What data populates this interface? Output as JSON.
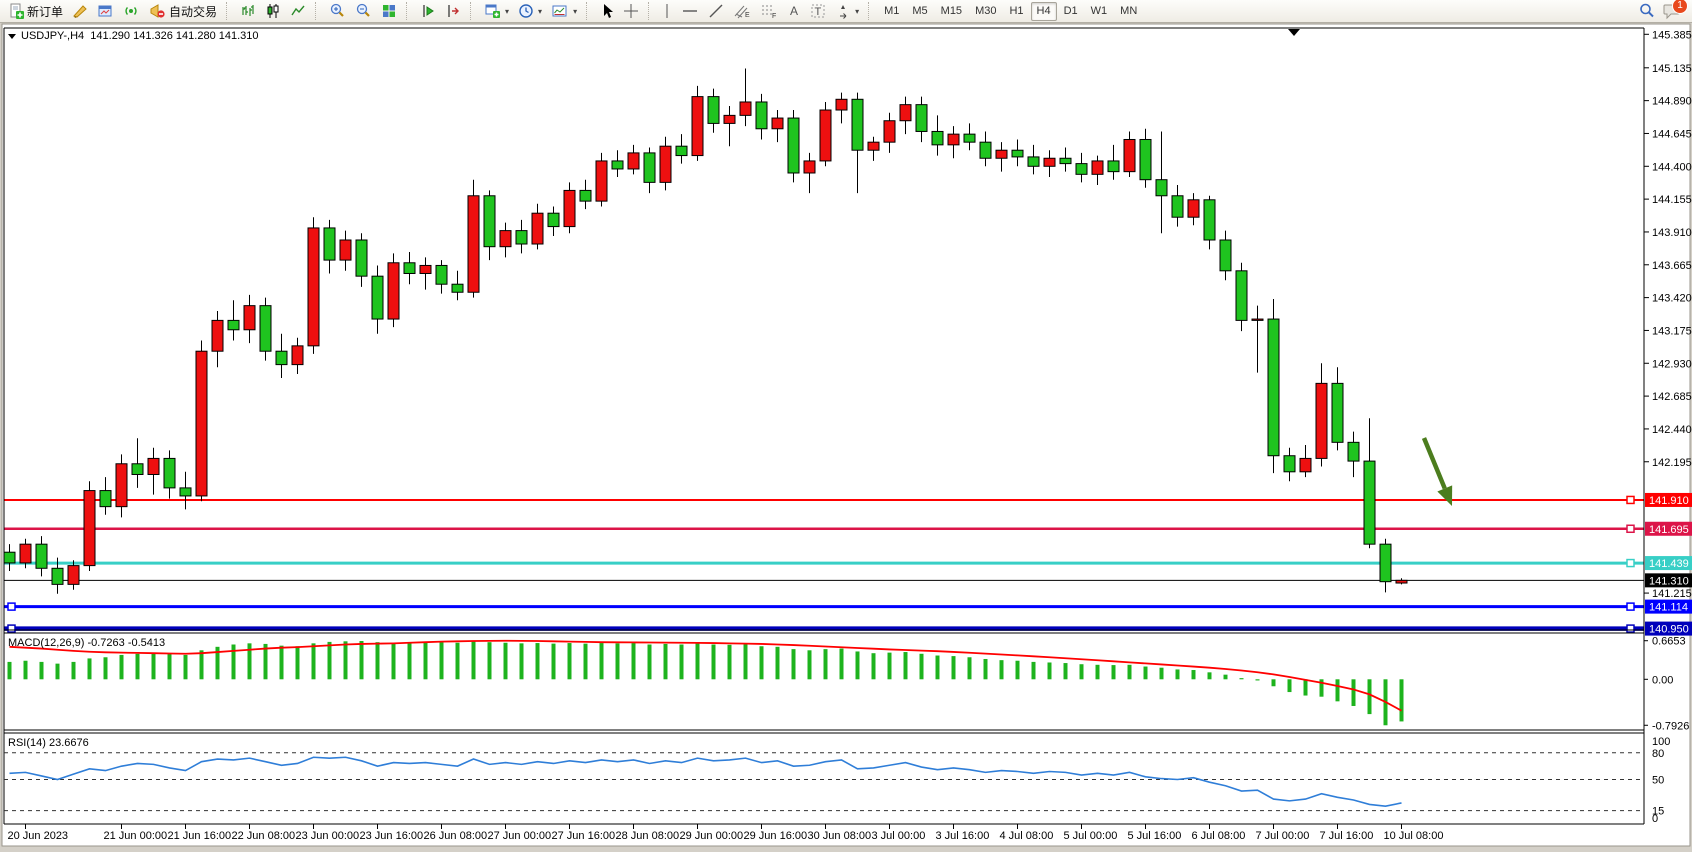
{
  "toolbar": {
    "new_order_label": "新订单",
    "auto_trading_label": "自动交易",
    "timeframes": [
      "M1",
      "M5",
      "M15",
      "M30",
      "H1",
      "H4",
      "D1",
      "W1",
      "MN"
    ],
    "active_timeframe": "H4",
    "notification_badge": "1",
    "icons": {
      "symbol_dropdown": "▼",
      "caret": "▾",
      "crosshair": "+",
      "vertical_line": "|",
      "horizontal_line": "—",
      "trend_line": "/",
      "text_tool": "A",
      "label_tool": "T",
      "channel_tool": "E",
      "fibonacci_tool": "F"
    }
  },
  "chart": {
    "title": "USDJPY-,H4  141.290 141.326 141.280 141.310",
    "symbol": "USDJPY-",
    "period": "H4",
    "quote": {
      "open": "141.290",
      "high": "141.326",
      "low": "141.280",
      "close": "141.310"
    },
    "macd_label": "MACD(12,26,9) -0.7263 -0.5413",
    "rsi_label": "RSI(14) 23.6676"
  },
  "chart_data": {
    "type": "candlestick",
    "symbol": "USDJPY-",
    "timeframe": "H4",
    "colors": {
      "bull": "#ee1010",
      "bear": "#1fc41f",
      "outline": "#000000",
      "macd_hist": "#1db31d",
      "macd_signal": "#ff0000",
      "rsi_line": "#2f7ed8",
      "arrow": "#4c7d1e"
    },
    "y_axis": {
      "tick_labels": [
        "145.385",
        "145.135",
        "144.890",
        "144.645",
        "144.400",
        "144.155",
        "143.910",
        "143.665",
        "143.420",
        "143.175",
        "142.930",
        "142.685",
        "142.440",
        "142.195",
        "141.215"
      ]
    },
    "x_labels": [
      "20 Jun 2023",
      "21 Jun 00:00",
      "21 Jun 16:00",
      "22 Jun 08:00",
      "23 Jun 00:00",
      "23 Jun 16:00",
      "26 Jun 08:00",
      "27 Jun 00:00",
      "27 Jun 16:00",
      "28 Jun 08:00",
      "29 Jun 00:00",
      "29 Jun 16:00",
      "30 Jun 08:00",
      "3 Jul 00:00",
      "3 Jul 16:00",
      "4 Jul 08:00",
      "5 Jul 00:00",
      "5 Jul 16:00",
      "6 Jul 08:00",
      "7 Jul 00:00",
      "7 Jul 16:00",
      "10 Jul 08:00"
    ],
    "bid_line": {
      "price": 141.31,
      "label": "141.310",
      "color": "#000000"
    },
    "hlines": [
      {
        "price": 141.91,
        "label": "141.910",
        "color": "#ff0000",
        "width": 2,
        "handles": "right"
      },
      {
        "price": 141.695,
        "label": "141.695",
        "color": "#dc1448",
        "width": 2.5,
        "handles": "right"
      },
      {
        "price": 141.439,
        "label": "141.439",
        "color": "#38cfc6",
        "width": 3,
        "handles": "right"
      },
      {
        "price": 141.114,
        "label": "141.114",
        "color": "#0000ff",
        "width": 3,
        "handles": "both"
      },
      {
        "price": 140.95,
        "label": "140.950",
        "color": "#0000bb",
        "width": 4.5,
        "handles": "both"
      }
    ],
    "annotations": [
      {
        "type": "arrow",
        "from_xy": [
          1424,
          438
        ],
        "to_xy": [
          1452,
          506
        ],
        "color": "#4c7d1e"
      }
    ],
    "candles": [
      [
        "19 Jun 20:00",
        141.52,
        141.58,
        141.38,
        141.44
      ],
      [
        "20 Jun 00:00",
        141.44,
        141.62,
        141.4,
        141.58
      ],
      [
        "20 Jun 04:00",
        141.58,
        141.64,
        141.34,
        141.4
      ],
      [
        "20 Jun 08:00",
        141.4,
        141.48,
        141.21,
        141.28
      ],
      [
        "20 Jun 12:00",
        141.28,
        141.46,
        141.24,
        141.42
      ],
      [
        "20 Jun 16:00",
        141.42,
        142.05,
        141.38,
        141.98
      ],
      [
        "20 Jun 20:00",
        141.98,
        142.08,
        141.8,
        141.86
      ],
      [
        "21 Jun 00:00",
        141.86,
        142.25,
        141.78,
        142.18
      ],
      [
        "21 Jun 04:00",
        142.18,
        142.37,
        142.0,
        142.1
      ],
      [
        "21 Jun 08:00",
        142.1,
        142.3,
        141.95,
        142.22
      ],
      [
        "21 Jun 12:00",
        142.22,
        142.28,
        141.92,
        142.0
      ],
      [
        "21 Jun 16:00",
        142.0,
        142.12,
        141.84,
        141.94
      ],
      [
        "21 Jun 20:00",
        141.94,
        143.1,
        141.9,
        143.02
      ],
      [
        "22 Jun 00:00",
        143.02,
        143.32,
        142.9,
        143.25
      ],
      [
        "22 Jun 04:00",
        143.25,
        143.4,
        143.1,
        143.18
      ],
      [
        "22 Jun 08:00",
        143.18,
        143.44,
        143.08,
        143.36
      ],
      [
        "22 Jun 12:00",
        143.36,
        143.42,
        142.95,
        143.02
      ],
      [
        "22 Jun 16:00",
        143.02,
        143.15,
        142.82,
        142.92
      ],
      [
        "22 Jun 20:00",
        142.92,
        143.12,
        142.85,
        143.06
      ],
      [
        "23 Jun 00:00",
        143.06,
        144.02,
        143.0,
        143.94
      ],
      [
        "23 Jun 04:00",
        143.94,
        144.0,
        143.6,
        143.7
      ],
      [
        "23 Jun 08:00",
        143.7,
        143.92,
        143.62,
        143.85
      ],
      [
        "23 Jun 12:00",
        143.85,
        143.9,
        143.5,
        143.58
      ],
      [
        "23 Jun 16:00",
        143.58,
        143.66,
        143.15,
        143.26
      ],
      [
        "23 Jun 20:00",
        143.26,
        143.75,
        143.2,
        143.68
      ],
      [
        "26 Jun 00:00",
        143.68,
        143.76,
        143.52,
        143.6
      ],
      [
        "26 Jun 04:00",
        143.6,
        143.72,
        143.48,
        143.66
      ],
      [
        "26 Jun 08:00",
        143.66,
        143.7,
        143.45,
        143.52
      ],
      [
        "26 Jun 12:00",
        143.52,
        143.62,
        143.4,
        143.46
      ],
      [
        "26 Jun 16:00",
        143.46,
        144.3,
        143.42,
        144.18
      ],
      [
        "26 Jun 20:00",
        144.18,
        144.22,
        143.7,
        143.8
      ],
      [
        "27 Jun 00:00",
        143.8,
        143.98,
        143.72,
        143.92
      ],
      [
        "27 Jun 04:00",
        143.92,
        144.0,
        143.75,
        143.82
      ],
      [
        "27 Jun 08:00",
        143.82,
        144.12,
        143.78,
        144.05
      ],
      [
        "27 Jun 12:00",
        144.05,
        144.1,
        143.88,
        143.95
      ],
      [
        "27 Jun 16:00",
        143.95,
        144.28,
        143.9,
        144.22
      ],
      [
        "27 Jun 20:00",
        144.22,
        144.3,
        144.08,
        144.14
      ],
      [
        "28 Jun 00:00",
        144.14,
        144.5,
        144.1,
        144.44
      ],
      [
        "28 Jun 04:00",
        144.44,
        144.52,
        144.32,
        144.38
      ],
      [
        "28 Jun 08:00",
        144.38,
        144.56,
        144.34,
        144.5
      ],
      [
        "28 Jun 12:00",
        144.5,
        144.54,
        144.2,
        144.28
      ],
      [
        "28 Jun 16:00",
        144.28,
        144.62,
        144.22,
        144.55
      ],
      [
        "28 Jun 20:00",
        144.55,
        144.64,
        144.42,
        144.48
      ],
      [
        "29 Jun 00:00",
        144.48,
        145.0,
        144.44,
        144.92
      ],
      [
        "29 Jun 04:00",
        144.92,
        144.98,
        144.65,
        144.72
      ],
      [
        "29 Jun 08:00",
        144.72,
        144.85,
        144.55,
        144.78
      ],
      [
        "29 Jun 12:00",
        144.78,
        145.13,
        144.7,
        144.88
      ],
      [
        "29 Jun 16:00",
        144.88,
        144.94,
        144.6,
        144.68
      ],
      [
        "29 Jun 20:00",
        144.68,
        144.82,
        144.58,
        144.76
      ],
      [
        "30 Jun 00:00",
        144.76,
        144.82,
        144.28,
        144.35
      ],
      [
        "30 Jun 04:00",
        144.35,
        144.5,
        144.2,
        144.44
      ],
      [
        "30 Jun 08:00",
        144.44,
        144.88,
        144.4,
        144.82
      ],
      [
        "30 Jun 12:00",
        144.82,
        144.95,
        144.72,
        144.9
      ],
      [
        "30 Jun 16:00",
        144.9,
        144.95,
        144.2,
        144.52
      ],
      [
        "30 Jun 20:00",
        144.52,
        144.62,
        144.44,
        144.58
      ],
      [
        "3 Jul 00:00",
        144.58,
        144.8,
        144.5,
        144.74
      ],
      [
        "3 Jul 04:00",
        144.74,
        144.92,
        144.64,
        144.86
      ],
      [
        "3 Jul 08:00",
        144.86,
        144.92,
        144.58,
        144.66
      ],
      [
        "3 Jul 12:00",
        144.66,
        144.78,
        144.48,
        144.56
      ],
      [
        "3 Jul 16:00",
        144.56,
        144.7,
        144.46,
        144.64
      ],
      [
        "3 Jul 20:00",
        144.64,
        144.72,
        144.52,
        144.58
      ],
      [
        "4 Jul 00:00",
        144.58,
        144.66,
        144.4,
        144.46
      ],
      [
        "4 Jul 04:00",
        144.46,
        144.58,
        144.36,
        144.52
      ],
      [
        "4 Jul 08:00",
        144.52,
        144.6,
        144.4,
        144.47
      ],
      [
        "4 Jul 12:00",
        144.47,
        144.56,
        144.34,
        144.4
      ],
      [
        "4 Jul 16:00",
        144.4,
        144.52,
        144.32,
        144.46
      ],
      [
        "4 Jul 20:00",
        144.46,
        144.54,
        144.36,
        144.42
      ],
      [
        "5 Jul 00:00",
        144.42,
        144.5,
        144.28,
        144.34
      ],
      [
        "5 Jul 04:00",
        144.34,
        144.48,
        144.26,
        144.44
      ],
      [
        "5 Jul 08:00",
        144.44,
        144.56,
        144.3,
        144.36
      ],
      [
        "5 Jul 12:00",
        144.36,
        144.66,
        144.32,
        144.6
      ],
      [
        "5 Jul 16:00",
        144.6,
        144.68,
        144.24,
        144.3
      ],
      [
        "5 Jul 20:00",
        144.3,
        144.66,
        143.9,
        144.18
      ],
      [
        "6 Jul 00:00",
        144.18,
        144.26,
        143.95,
        144.02
      ],
      [
        "6 Jul 04:00",
        144.02,
        144.2,
        143.96,
        144.15
      ],
      [
        "6 Jul 08:00",
        144.15,
        144.18,
        143.78,
        143.85
      ],
      [
        "6 Jul 12:00",
        143.85,
        143.92,
        143.55,
        143.62
      ],
      [
        "6 Jul 16:00",
        143.62,
        143.68,
        143.17,
        143.25
      ],
      [
        "6 Jul 20:00",
        143.25,
        143.36,
        142.86,
        143.26
      ],
      [
        "7 Jul 00:00",
        143.26,
        143.41,
        142.11,
        142.24
      ],
      [
        "7 Jul 04:00",
        142.24,
        142.3,
        142.05,
        142.12
      ],
      [
        "7 Jul 08:00",
        142.12,
        142.32,
        142.08,
        142.22
      ],
      [
        "7 Jul 12:00",
        142.22,
        142.93,
        142.16,
        142.78
      ],
      [
        "7 Jul 16:00",
        142.78,
        142.9,
        142.28,
        142.34
      ],
      [
        "7 Jul 20:00",
        142.34,
        142.42,
        142.08,
        142.2
      ],
      [
        "10 Jul 00:00",
        142.2,
        142.52,
        141.55,
        141.58
      ],
      [
        "10 Jul 04:00",
        141.58,
        141.62,
        141.22,
        141.3
      ],
      [
        "10 Jul 08:00",
        141.29,
        141.326,
        141.28,
        141.31
      ]
    ],
    "macd": {
      "label": "MACD(12,26,9) -0.7263 -0.5413",
      "params": "12,26,9",
      "macd_value": -0.7263,
      "signal_value": -0.5413,
      "axis_labels": [
        "0.6653",
        "0.00",
        "-0.7926"
      ],
      "histogram": [
        0.3,
        0.32,
        0.3,
        0.27,
        0.3,
        0.36,
        0.38,
        0.42,
        0.44,
        0.45,
        0.44,
        0.42,
        0.5,
        0.56,
        0.6,
        0.62,
        0.61,
        0.58,
        0.57,
        0.62,
        0.645,
        0.655,
        0.66,
        0.64,
        0.62,
        0.625,
        0.63,
        0.635,
        0.63,
        0.655,
        0.64,
        0.63,
        0.62,
        0.625,
        0.615,
        0.625,
        0.615,
        0.625,
        0.62,
        0.625,
        0.6,
        0.61,
        0.6,
        0.625,
        0.6,
        0.595,
        0.6,
        0.57,
        0.56,
        0.52,
        0.5,
        0.52,
        0.53,
        0.48,
        0.45,
        0.46,
        0.47,
        0.44,
        0.41,
        0.4,
        0.38,
        0.35,
        0.33,
        0.32,
        0.3,
        0.29,
        0.28,
        0.26,
        0.25,
        0.245,
        0.25,
        0.22,
        0.2,
        0.17,
        0.16,
        0.12,
        0.08,
        0.02,
        -0.02,
        -0.12,
        -0.22,
        -0.28,
        -0.3,
        -0.38,
        -0.46,
        -0.6,
        -0.7926,
        -0.7263
      ],
      "signal": [
        0.56,
        0.545,
        0.53,
        0.51,
        0.49,
        0.475,
        0.465,
        0.46,
        0.455,
        0.45,
        0.445,
        0.44,
        0.45,
        0.47,
        0.49,
        0.51,
        0.53,
        0.545,
        0.555,
        0.57,
        0.585,
        0.6,
        0.61,
        0.615,
        0.62,
        0.63,
        0.64,
        0.65,
        0.655,
        0.66,
        0.663,
        0.665,
        0.663,
        0.66,
        0.655,
        0.65,
        0.645,
        0.64,
        0.638,
        0.636,
        0.634,
        0.632,
        0.63,
        0.628,
        0.625,
        0.62,
        0.615,
        0.61,
        0.6,
        0.59,
        0.578,
        0.565,
        0.552,
        0.54,
        0.528,
        0.515,
        0.505,
        0.495,
        0.485,
        0.472,
        0.458,
        0.443,
        0.428,
        0.412,
        0.396,
        0.38,
        0.363,
        0.346,
        0.328,
        0.31,
        0.292,
        0.274,
        0.256,
        0.238,
        0.22,
        0.2,
        0.178,
        0.152,
        0.122,
        0.085,
        0.04,
        -0.01,
        -0.06,
        -0.115,
        -0.175,
        -0.26,
        -0.39,
        -0.5413
      ]
    },
    "rsi": {
      "label": "RSI(14) 23.6676",
      "period": 14,
      "value": 23.6676,
      "axis_labels": [
        "100",
        "80",
        "50",
        "15",
        "0"
      ],
      "dashed_levels": [
        80,
        50,
        15
      ],
      "values": [
        57,
        58,
        54,
        50,
        56,
        62,
        60,
        65,
        68,
        67,
        63,
        60,
        70,
        73,
        72,
        74,
        70,
        66,
        68,
        75,
        74,
        75,
        71,
        65,
        69,
        68,
        69,
        67,
        65,
        73,
        67,
        69,
        67,
        70,
        68,
        71,
        69,
        72,
        70,
        72,
        68,
        71,
        69,
        74,
        71,
        72,
        74,
        69,
        71,
        65,
        66,
        70,
        72,
        62,
        63,
        66,
        69,
        64,
        61,
        63,
        61,
        58,
        60,
        59,
        57,
        59,
        58,
        55,
        57,
        55,
        58,
        53,
        51,
        50,
        52,
        47,
        43,
        37,
        38,
        28,
        26,
        28,
        34,
        30,
        27,
        22,
        20,
        23.6676
      ]
    }
  }
}
